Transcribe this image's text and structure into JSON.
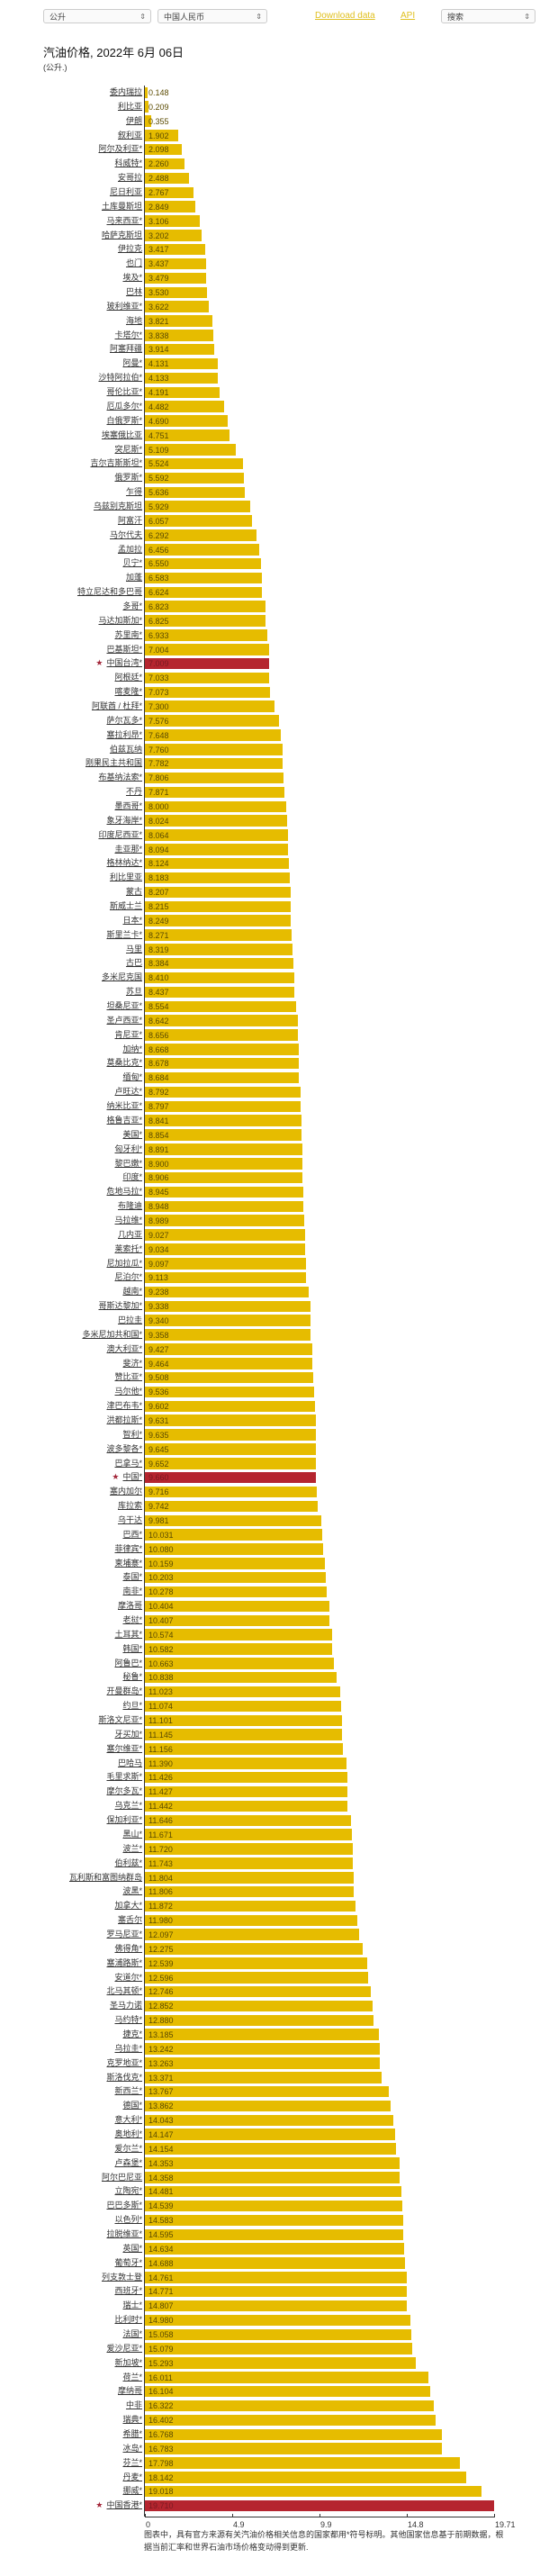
{
  "toolbar": {
    "unit_select": "公升",
    "currency_select": "中国人民币",
    "download_link": "Download data",
    "api_link": "API",
    "search_select": "搜索"
  },
  "header": {
    "title": "汽油价格, 2022年 6月 06日",
    "subtitle": "(公升.)"
  },
  "colors": {
    "bar": "#e6bc00",
    "highlight": "#b5252f",
    "link": "#e0c020"
  },
  "footnote": "图表中，具有官方来源有关汽油价格相关信息的国家都用*符号标明。其他国家信息基于前期数据，根据当前汇率和世界石油市场价格变动得到更新.",
  "chart_data": {
    "type": "bar",
    "orientation": "horizontal",
    "title": "汽油价格, 2022年 6月 06日",
    "subtitle": "(公升.)",
    "xlabel": "",
    "ylabel": "",
    "xlim": [
      0,
      19.71
    ],
    "xticks": [
      "0",
      "4.9",
      "9.9",
      "14.8",
      "19.71"
    ],
    "grid": false,
    "legend": null,
    "highlighted": [
      "中国台湾*",
      "中国*",
      "中国香港*"
    ],
    "categories": [
      "委内瑞拉",
      "利比亚",
      "伊朗",
      "叙利亚",
      "阿尔及利亚*",
      "科威特*",
      "安哥拉",
      "尼日利亚",
      "土库曼斯坦",
      "马来西亚*",
      "哈萨克斯坦",
      "伊拉克",
      "也门",
      "埃及*",
      "巴林",
      "玻利维亚*",
      "海地",
      "卡塔尔*",
      "阿塞拜疆",
      "阿曼*",
      "沙特阿拉伯*",
      "哥伦比亚*",
      "厄瓜多尔*",
      "白俄罗斯*",
      "埃塞俄比亚",
      "突尼斯*",
      "吉尔吉斯斯坦*",
      "俄罗斯*",
      "乍得",
      "乌兹别克斯坦",
      "阿富汗",
      "马尔代夫",
      "孟加拉",
      "贝宁*",
      "加蓬",
      "特立尼达和多巴哥",
      "多哥*",
      "马达加斯加*",
      "苏里南*",
      "巴基斯坦*",
      "中国台湾*",
      "阿根廷*",
      "喀麦隆*",
      "阿联酋 / 杜拜*",
      "萨尔瓦多*",
      "塞拉利昂*",
      "伯兹瓦纳",
      "刚果民主共和国",
      "布基纳法索*",
      "不丹",
      "墨西哥*",
      "象牙海岸*",
      "印度尼西亚*",
      "圭亚那*",
      "格林纳达*",
      "利比里亚",
      "蒙古",
      "斯威士兰",
      "日本*",
      "斯里兰卡*",
      "马里",
      "古巴",
      "多米尼克国",
      "苏旦",
      "坦桑尼亚*",
      "圣卢西亚*",
      "肯尼亚*",
      "加纳*",
      "莫桑比克*",
      "缅甸*",
      "卢旺达*",
      "纳米比亚*",
      "格鲁吉亚*",
      "美国*",
      "匈牙利*",
      "黎巴嫩*",
      "印度*",
      "危地马拉*",
      "布隆迪",
      "马拉维*",
      "几内亚",
      "莱索托*",
      "尼加拉瓜*",
      "尼泊尔*",
      "越南*",
      "哥斯达黎加*",
      "巴拉圭",
      "多米尼加共和国*",
      "澳大利亚*",
      "斐济*",
      "赞比亚*",
      "马尔他*",
      "津巴布韦*",
      "洪都拉斯*",
      "智利*",
      "波多黎各*",
      "巴拿马*",
      "中国*",
      "塞内加尔",
      "库拉索",
      "乌干达",
      "巴西*",
      "菲律宾*",
      "柬埔寨*",
      "泰国*",
      "南非*",
      "摩洛哥",
      "老挝*",
      "土耳其*",
      "韩国*",
      "阿鲁巴*",
      "秘鲁*",
      "开曼群岛*",
      "约旦*",
      "斯洛文尼亚*",
      "牙买加*",
      "塞尔维亚*",
      "巴哈马",
      "毛里求斯*",
      "摩尔多瓦*",
      "乌克兰*",
      "保加利亚*",
      "黑山*",
      "波兰*",
      "伯利兹*",
      "瓦利斯和富图纳群岛",
      "波黑*",
      "加拿大*",
      "塞舌尔",
      "罗马尼亚*",
      "佛得角*",
      "塞浦路斯*",
      "安道尔*",
      "北马其顿*",
      "圣马力诺",
      "马约特*",
      "捷克*",
      "乌拉圭*",
      "克罗地亚*",
      "斯洛伐克*",
      "新西兰*",
      "德国*",
      "意大利*",
      "奥地利*",
      "爱尔兰*",
      "卢森堡*",
      "阿尔巴尼亚",
      "立陶宛*",
      "巴巴多斯*",
      "以色列*",
      "拉脱维亚*",
      "英国*",
      "葡萄牙*",
      "列支敦士登",
      "西班牙*",
      "瑞士*",
      "比利时*",
      "法国*",
      "爱沙尼亚*",
      "新加坡*",
      "荷兰*",
      "摩纳哥",
      "中非",
      "瑞典*",
      "希腊*",
      "冰岛*",
      "芬兰*",
      "丹麦*",
      "挪威*",
      "中国香港*"
    ],
    "values": [
      0.148,
      0.209,
      0.355,
      1.902,
      2.098,
      2.26,
      2.488,
      2.767,
      2.849,
      3.106,
      3.202,
      3.417,
      3.437,
      3.479,
      3.53,
      3.622,
      3.821,
      3.838,
      3.914,
      4.131,
      4.133,
      4.191,
      4.482,
      4.69,
      4.751,
      5.109,
      5.524,
      5.592,
      5.636,
      5.929,
      6.057,
      6.292,
      6.456,
      6.55,
      6.583,
      6.624,
      6.823,
      6.825,
      6.933,
      7.004,
      7.009,
      7.033,
      7.073,
      7.3,
      7.576,
      7.648,
      7.76,
      7.782,
      7.806,
      7.871,
      8.0,
      8.024,
      8.064,
      8.094,
      8.124,
      8.183,
      8.207,
      8.215,
      8.249,
      8.271,
      8.319,
      8.384,
      8.41,
      8.437,
      8.554,
      8.642,
      8.656,
      8.668,
      8.678,
      8.684,
      8.792,
      8.797,
      8.841,
      8.854,
      8.891,
      8.9,
      8.906,
      8.945,
      8.948,
      8.989,
      9.027,
      9.034,
      9.097,
      9.113,
      9.238,
      9.338,
      9.34,
      9.358,
      9.427,
      9.464,
      9.508,
      9.536,
      9.602,
      9.631,
      9.635,
      9.645,
      9.652,
      9.66,
      9.716,
      9.742,
      9.981,
      10.031,
      10.08,
      10.159,
      10.203,
      10.278,
      10.404,
      10.407,
      10.574,
      10.582,
      10.663,
      10.838,
      11.023,
      11.074,
      11.101,
      11.145,
      11.156,
      11.39,
      11.426,
      11.427,
      11.442,
      11.646,
      11.671,
      11.72,
      11.743,
      11.804,
      11.806,
      11.872,
      11.98,
      12.097,
      12.275,
      12.539,
      12.596,
      12.746,
      12.852,
      12.88,
      13.185,
      13.242,
      13.263,
      13.371,
      13.767,
      13.862,
      14.043,
      14.147,
      14.154,
      14.353,
      14.358,
      14.481,
      14.539,
      14.583,
      14.595,
      14.634,
      14.688,
      14.761,
      14.771,
      14.807,
      14.98,
      15.058,
      15.079,
      15.293,
      16.011,
      16.104,
      16.322,
      16.402,
      16.768,
      16.783,
      17.798,
      18.142,
      19.018,
      19.71
    ]
  }
}
